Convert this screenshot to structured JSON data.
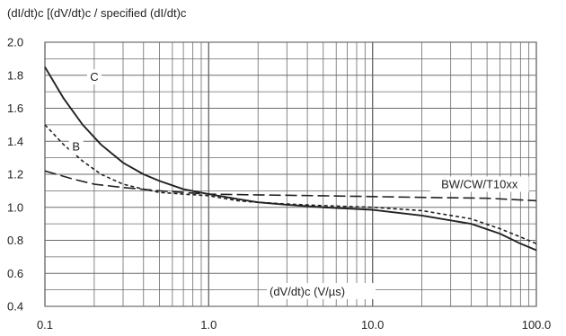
{
  "chart_data": {
    "type": "line",
    "ylabel": "(dI/dt)c [(dV/dt)c / specified (dI/dt)c",
    "xlabel": "(dV/dt)c (V/µs)",
    "x_scale": "log",
    "xlim": [
      0.1,
      100
    ],
    "ylim": [
      0.4,
      2.0
    ],
    "x_ticks": [
      0.1,
      1.0,
      10.0,
      100.0
    ],
    "x_tick_labels": [
      "0.1",
      "1.0",
      "10.0",
      "100.0"
    ],
    "y_ticks": [
      0.4,
      0.6,
      0.8,
      1.0,
      1.2,
      1.4,
      1.6,
      1.8,
      2.0
    ],
    "y_tick_labels": [
      "0.4",
      "0.6",
      "0.8",
      "1.0",
      "1.2",
      "1.4",
      "1.6",
      "1.8",
      "2.0"
    ],
    "grid": true,
    "series": [
      {
        "name": "C",
        "style": "solid",
        "x": [
          0.1,
          0.13,
          0.17,
          0.22,
          0.3,
          0.4,
          0.5,
          0.7,
          1.0,
          1.5,
          2.0,
          3.0,
          5.0,
          10.0,
          20.0,
          40.0,
          60.0,
          80.0,
          100.0
        ],
        "y": [
          1.85,
          1.66,
          1.5,
          1.38,
          1.27,
          1.2,
          1.16,
          1.11,
          1.08,
          1.05,
          1.03,
          1.015,
          1.0,
          0.985,
          0.95,
          0.9,
          0.84,
          0.78,
          0.74
        ]
      },
      {
        "name": "B",
        "style": "short-dash",
        "x": [
          0.1,
          0.13,
          0.17,
          0.22,
          0.3,
          0.4,
          0.5,
          0.7,
          1.0,
          1.5,
          2.0,
          3.0,
          5.0,
          10.0,
          20.0,
          40.0,
          60.0,
          80.0,
          100.0
        ],
        "y": [
          1.5,
          1.38,
          1.28,
          1.2,
          1.14,
          1.11,
          1.09,
          1.08,
          1.07,
          1.04,
          1.03,
          1.02,
          1.01,
          1.0,
          0.98,
          0.93,
          0.87,
          0.82,
          0.78
        ]
      },
      {
        "name": "BW/CW/T10xx",
        "style": "long-dash",
        "x": [
          0.1,
          0.15,
          0.2,
          0.3,
          0.5,
          1.0,
          2.0,
          5.0,
          10.0,
          20.0,
          50.0,
          100.0
        ],
        "y": [
          1.22,
          1.17,
          1.14,
          1.12,
          1.1,
          1.08,
          1.075,
          1.07,
          1.065,
          1.06,
          1.055,
          1.04
        ]
      }
    ],
    "series_labels": [
      "C",
      "B",
      "BW/CW/T10xx"
    ],
    "colors": {
      "line": "#222222",
      "grid": "#6b6b6b",
      "background": "#ffffff"
    }
  }
}
